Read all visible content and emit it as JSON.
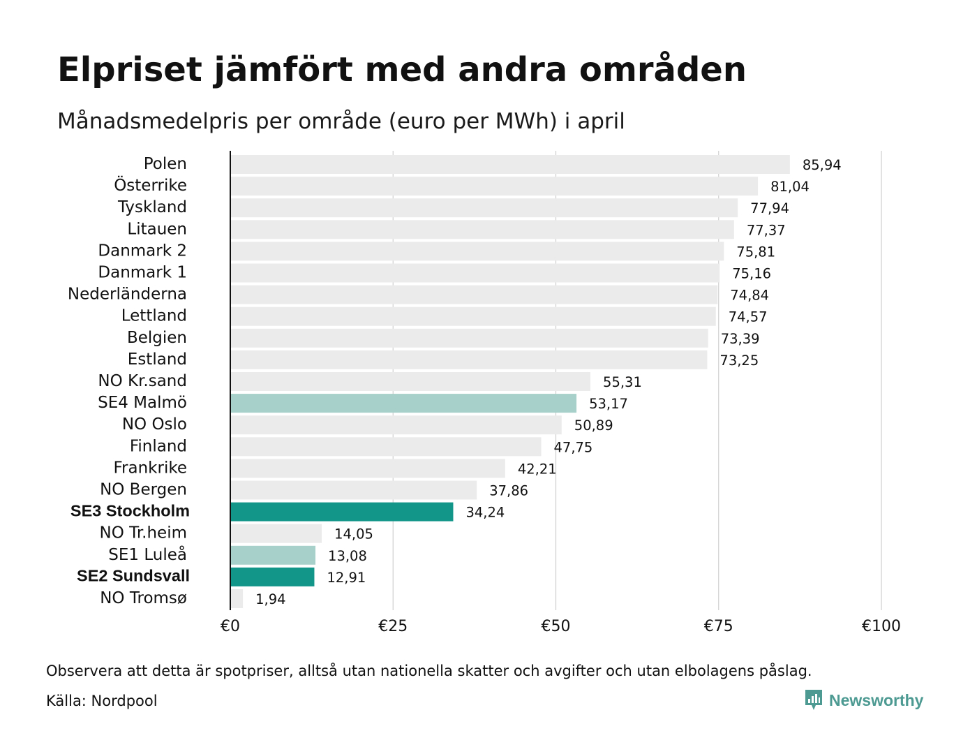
{
  "header": {
    "title": "Elpriset jämfört med andra områden",
    "subtitle": "Månadsmedelpris per område (euro per MWh) i april"
  },
  "footer": {
    "note": "Observera att detta är spotpriser, alltså utan nationella skatter och avgifter och utan elbolagens påslag.",
    "source": "Källa: Nordpool"
  },
  "brand": {
    "name": "Newsworthy",
    "icon": "newsworthy-logo-icon",
    "color": "#4d9a92"
  },
  "colors": {
    "default_bar": "#ebebeb",
    "se_other_bar": "#a6d0c9",
    "se_highlight_bar": "#12968a",
    "axis": "#111111",
    "grid": "#cfcfcf"
  },
  "chart_data": {
    "type": "bar",
    "orientation": "horizontal",
    "categories": [
      "Polen",
      "Österrike",
      "Tyskland",
      "Litauen",
      "Danmark 2",
      "Danmark 1",
      "Nederländerna",
      "Lettland",
      "Belgien",
      "Estland",
      "NO Kr.sand",
      "SE4 Malmö",
      "NO Oslo",
      "Finland",
      "Frankrike",
      "NO Bergen",
      "SE3 Stockholm",
      "NO Tr.heim",
      "SE1 Luleå",
      "SE2 Sundsvall",
      "NO Tromsø"
    ],
    "values": [
      85.94,
      81.04,
      77.94,
      77.37,
      75.81,
      75.16,
      74.84,
      74.57,
      73.39,
      73.25,
      55.31,
      53.17,
      50.89,
      47.75,
      42.21,
      37.86,
      34.24,
      14.05,
      13.08,
      12.91,
      1.94
    ],
    "value_labels": [
      "85,94",
      "81,04",
      "77,94",
      "77,37",
      "75,81",
      "75,16",
      "74,84",
      "74,57",
      "73,39",
      "73,25",
      "55,31",
      "53,17",
      "50,89",
      "47,75",
      "42,21",
      "37,86",
      "34,24",
      "14,05",
      "13,08",
      "12,91",
      "1,94"
    ],
    "highlight": [
      "default",
      "default",
      "default",
      "default",
      "default",
      "default",
      "default",
      "default",
      "default",
      "default",
      "default",
      "se_other",
      "default",
      "default",
      "default",
      "default",
      "se_highlight",
      "default",
      "se_other",
      "se_highlight",
      "default"
    ],
    "bold_labels": [
      "SE3 Stockholm",
      "SE2 Sundsvall"
    ],
    "xlim": [
      0,
      100
    ],
    "xticks": [
      0,
      25,
      50,
      75,
      100
    ],
    "xtick_labels": [
      "€0",
      "€25",
      "€50",
      "€75",
      "€100"
    ],
    "grid": true,
    "legend": false
  }
}
